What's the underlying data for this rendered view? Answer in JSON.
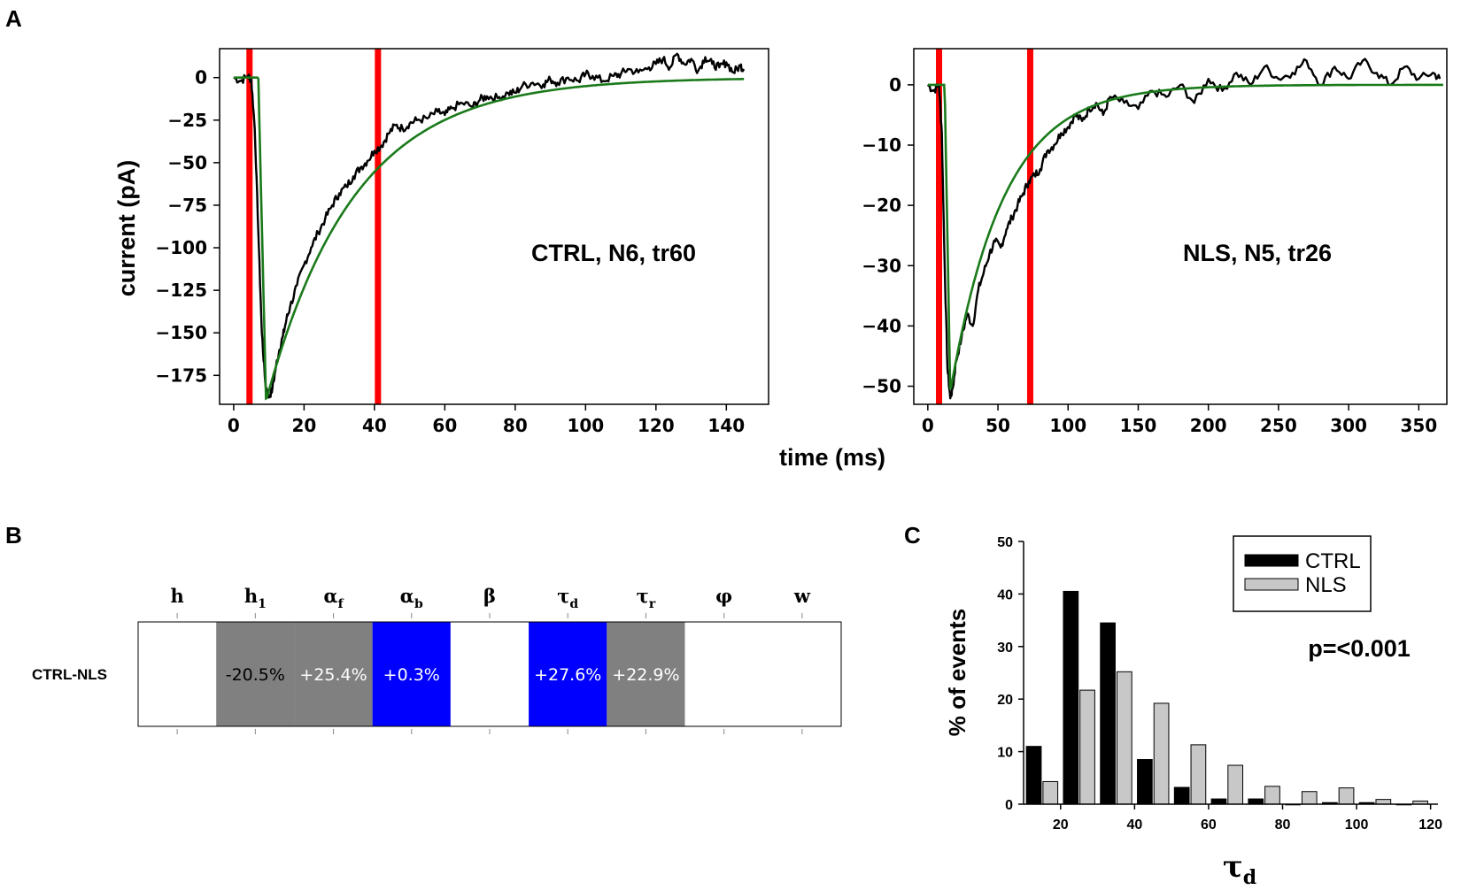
{
  "panel_letters": {
    "a": "A",
    "b": "B",
    "c": "C"
  },
  "panel_a": {
    "shared_xlabel": "time (ms)",
    "ylabel": "current (pA)",
    "colors": {
      "trace": "#000000",
      "fit": "#1a7a1a",
      "marker": "#ff0000"
    }
  },
  "panel_b": {
    "row_label": "CTRL-NLS",
    "columns": [
      {
        "symbol": "h",
        "sub": "",
        "fill": "#ffffff",
        "value": "",
        "text_color": "#000000"
      },
      {
        "symbol": "h",
        "sub": "1",
        "fill": "#808080",
        "value": "-20.5%",
        "text_color": "#000000"
      },
      {
        "symbol": "α",
        "sub": "f",
        "fill": "#808080",
        "value": "+25.4%",
        "text_color": "#ffffff"
      },
      {
        "symbol": "α",
        "sub": "b",
        "fill": "#0000ff",
        "value": "+0.3%",
        "text_color": "#ffffff"
      },
      {
        "symbol": "β",
        "sub": "",
        "fill": "#ffffff",
        "value": "",
        "text_color": "#000000"
      },
      {
        "symbol": "τ",
        "sub": "d",
        "fill": "#0000ff",
        "value": "+27.6%",
        "text_color": "#ffffff"
      },
      {
        "symbol": "τ",
        "sub": "r",
        "fill": "#808080",
        "value": "+22.9%",
        "text_color": "#ffffff"
      },
      {
        "symbol": "φ",
        "sub": "",
        "fill": "#ffffff",
        "value": "",
        "text_color": "#000000"
      },
      {
        "symbol": "w",
        "sub": "",
        "fill": "#ffffff",
        "value": "",
        "text_color": "#000000"
      }
    ]
  },
  "chart_data": [
    {
      "type": "line",
      "panel": "A-left",
      "annotation": "CTRL, N6, tr60",
      "xlabel": "time (ms)",
      "ylabel": "current (pA)",
      "xlim": [
        -4,
        152
      ],
      "ylim": [
        -192,
        17
      ],
      "xticks": [
        0,
        20,
        40,
        60,
        80,
        100,
        120,
        140
      ],
      "yticks": [
        0,
        -25,
        -50,
        -75,
        -100,
        -125,
        -150,
        -175
      ],
      "xtick_labels": [
        "0",
        "20",
        "40",
        "60",
        "80",
        "100",
        "120",
        "140"
      ],
      "ytick_labels": [
        "0",
        "−25",
        "−50",
        "−75",
        "−100",
        "−125",
        "−150",
        "−175"
      ],
      "vlines": [
        4.5,
        41
      ],
      "fit": {
        "onset": 7,
        "peak_time": 9.2,
        "peak": -190,
        "tau_decay": 25,
        "end": 145
      },
      "series": [
        {
          "name": "recorded trace",
          "x": [
            0,
            2,
            4,
            5,
            6,
            7,
            8,
            9,
            10,
            11,
            12,
            13,
            14,
            15,
            16,
            18,
            20,
            22,
            24,
            26,
            28,
            30,
            32,
            34,
            36,
            38,
            40,
            42,
            44,
            46,
            48,
            50,
            52,
            55,
            58,
            60,
            62,
            65,
            68,
            70,
            72,
            75,
            78,
            80,
            82,
            85,
            88,
            90,
            92,
            95,
            98,
            100,
            102,
            105,
            108,
            110,
            112,
            115,
            118,
            120,
            122,
            124,
            126,
            128,
            130,
            132,
            134,
            136,
            138,
            140,
            142,
            144,
            145
          ],
          "y": [
            0,
            -2,
            1,
            -1,
            -30,
            -90,
            -150,
            -180,
            -188,
            -183,
            -170,
            -160,
            -152,
            -142,
            -135,
            -122,
            -110,
            -100,
            -91,
            -83,
            -75,
            -68,
            -64,
            -58,
            -53,
            -49,
            -43,
            -40,
            -33,
            -28,
            -30,
            -27,
            -25,
            -24,
            -20,
            -22,
            -18,
            -15,
            -17,
            -13,
            -11,
            -12,
            -9,
            -9,
            -5,
            -3,
            -4,
            -1,
            -3,
            0,
            -2,
            2,
            1,
            -2,
            1,
            2,
            5,
            3,
            6,
            8,
            11,
            6,
            14,
            8,
            11,
            4,
            12,
            8,
            6,
            9,
            3,
            7,
            5
          ]
        },
        {
          "name": "fit",
          "formula": "exponential rise then single-exponential decay (tau_d ≈ 25 ms)"
        }
      ]
    },
    {
      "type": "line",
      "panel": "A-right",
      "annotation": "NLS, N5, tr26",
      "xlabel": "time (ms)",
      "ylabel": "",
      "xlim": [
        -10,
        370
      ],
      "ylim": [
        -53,
        6
      ],
      "xticks": [
        0,
        50,
        100,
        150,
        200,
        250,
        300,
        350
      ],
      "yticks": [
        0,
        -10,
        -20,
        -30,
        -40,
        -50
      ],
      "xtick_labels": [
        "0",
        "50",
        "100",
        "150",
        "200",
        "250",
        "300",
        "350"
      ],
      "ytick_labels": [
        "0",
        "−10",
        "−20",
        "−30",
        "−40",
        "−50"
      ],
      "vlines": [
        8,
        73
      ],
      "fit": {
        "onset": 12,
        "peak_time": 16,
        "peak": -51,
        "tau_decay": 38,
        "end": 368
      },
      "series": [
        {
          "name": "recorded trace",
          "x": [
            0,
            4,
            8,
            10,
            12,
            14,
            16,
            18,
            20,
            24,
            28,
            32,
            36,
            40,
            44,
            48,
            52,
            56,
            60,
            64,
            68,
            72,
            76,
            80,
            85,
            90,
            95,
            100,
            105,
            110,
            115,
            120,
            125,
            130,
            140,
            150,
            160,
            170,
            180,
            190,
            200,
            210,
            220,
            230,
            240,
            250,
            260,
            270,
            280,
            290,
            300,
            310,
            320,
            330,
            340,
            350,
            360,
            365
          ],
          "y": [
            0,
            -1,
            0,
            -8,
            -30,
            -47,
            -52,
            -50,
            -46,
            -42,
            -38,
            -40,
            -34,
            -31,
            -28,
            -26,
            -27,
            -24,
            -22,
            -20,
            -18,
            -16,
            -15,
            -14,
            -11,
            -10,
            -8,
            -7,
            -5,
            -6,
            -4,
            -3,
            -5,
            -2,
            -3,
            -4,
            -1,
            -2,
            0,
            -3,
            1,
            -1,
            2,
            0,
            3,
            1,
            2,
            4,
            0,
            3,
            1,
            4,
            2,
            0,
            3,
            1,
            2,
            1
          ]
        },
        {
          "name": "fit",
          "formula": "exponential rise then single-exponential decay (tau_d ≈ 38 ms)"
        }
      ]
    },
    {
      "type": "bar",
      "panel": "C",
      "xlabel": "τd",
      "ylabel": "% of events",
      "xlim": [
        10,
        122
      ],
      "ylim": [
        0,
        50
      ],
      "xticks": [
        20,
        40,
        60,
        80,
        100,
        120
      ],
      "yticks": [
        0,
        10,
        20,
        30,
        40,
        50
      ],
      "categories": [
        15,
        25,
        35,
        45,
        55,
        65,
        75,
        85,
        95,
        105,
        115
      ],
      "series": [
        {
          "name": "CTRL",
          "color": "#000000",
          "values": [
            11,
            40.5,
            34.5,
            8.5,
            3.2,
            1,
            1,
            0,
            0.3,
            0.3,
            0
          ]
        },
        {
          "name": "NLS",
          "color": "#c8c8c8",
          "values": [
            4.3,
            21.7,
            25.2,
            19.2,
            11.3,
            7.4,
            3.4,
            2.4,
            3.1,
            0.9,
            0.6
          ]
        }
      ],
      "annotation": "p=<0.001",
      "legend": {
        "placement": "top-right",
        "entries": [
          "CTRL",
          "NLS"
        ]
      }
    }
  ]
}
